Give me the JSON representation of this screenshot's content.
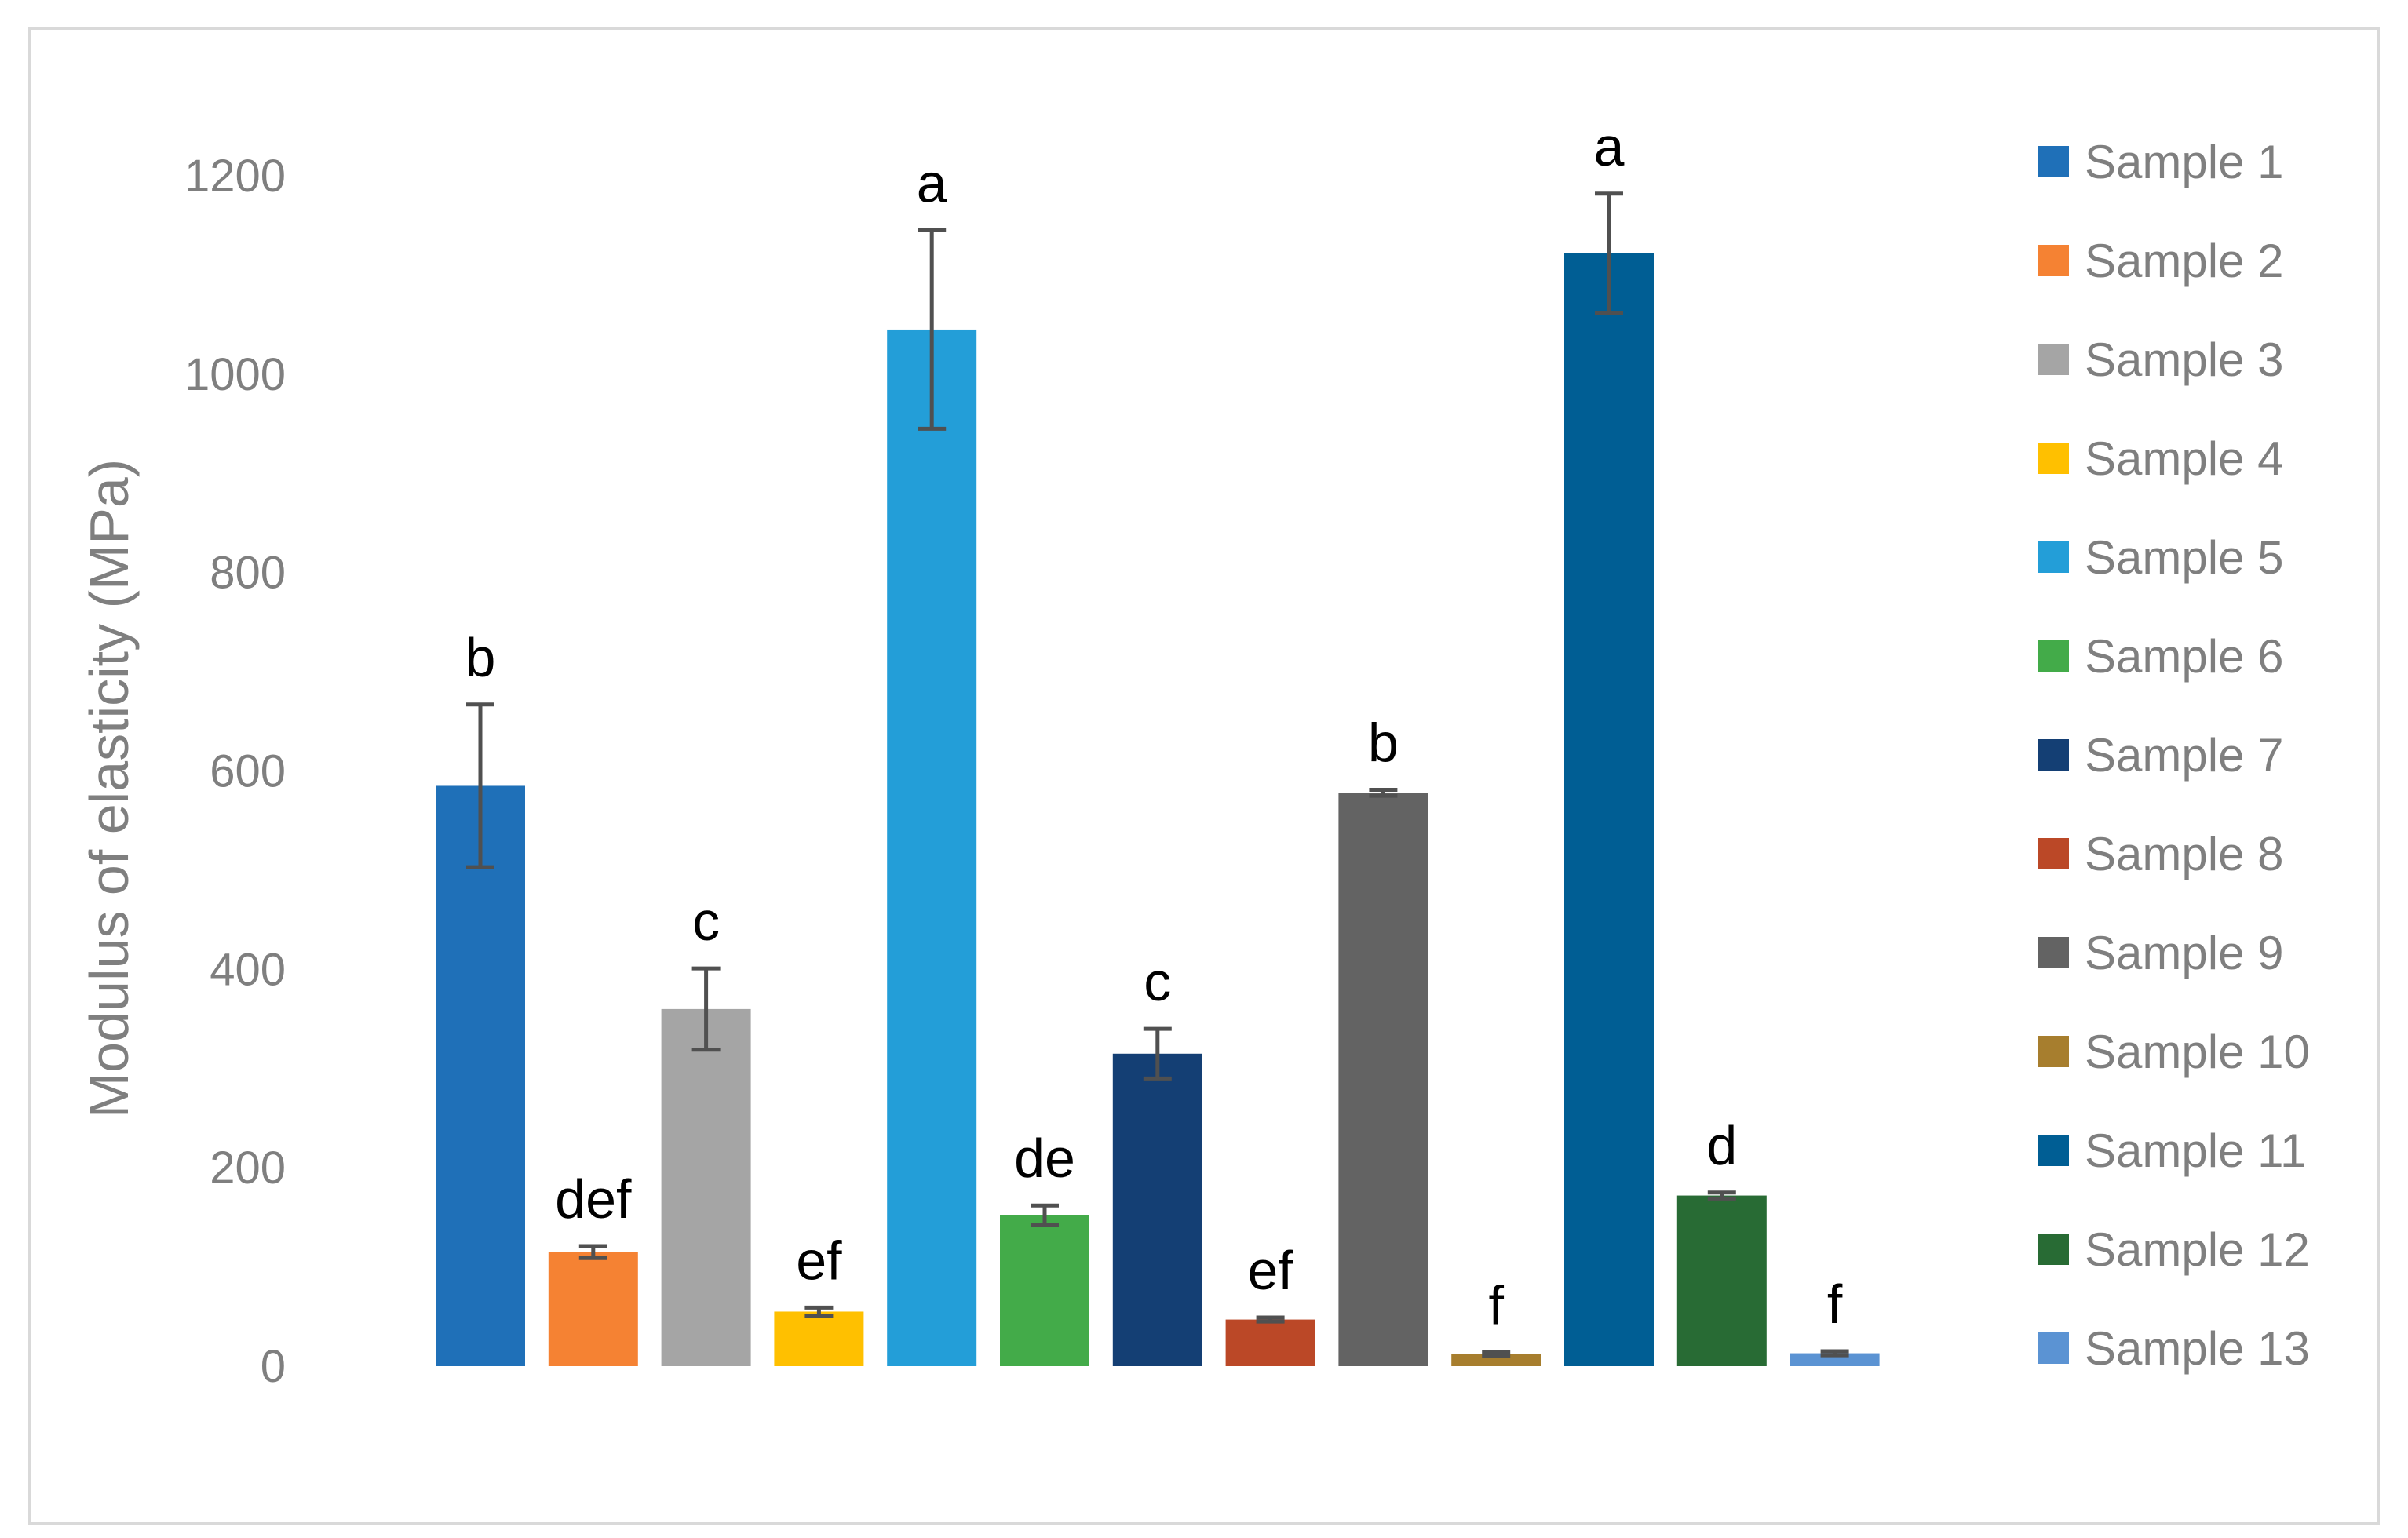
{
  "chart_data": {
    "type": "bar",
    "title": "",
    "xlabel": "",
    "ylabel": "Modulus of elasticity (MPa)",
    "ylim": [
      0,
      1200
    ],
    "yticks": [
      0,
      200,
      400,
      600,
      800,
      1000,
      1200
    ],
    "grid": false,
    "legend": "right",
    "categories": [
      "Sample 1",
      "Sample 2",
      "Sample 3",
      "Sample 4",
      "Sample 5",
      "Sample 6",
      "Sample 7",
      "Sample 8",
      "Sample 9",
      "Sample 10",
      "Sample 11",
      "Sample 12",
      "Sample 13"
    ],
    "values": [
      585,
      115,
      360,
      55,
      1045,
      152,
      315,
      47,
      578,
      12,
      1122,
      172,
      13
    ],
    "errors": [
      82,
      6,
      41,
      4,
      100,
      10,
      25,
      2,
      3,
      2,
      60,
      3,
      2
    ],
    "significance_letters": [
      "b",
      "def",
      "c",
      "ef",
      "a",
      "de",
      "c",
      "ef",
      "b",
      "f",
      "a",
      "d",
      "f"
    ],
    "colors": [
      "#1f70b8",
      "#f58233",
      "#a5a5a5",
      "#ffc000",
      "#239ed8",
      "#43ab49",
      "#143f74",
      "#bb4827",
      "#636363",
      "#a77e2e",
      "#005e94",
      "#286b34",
      "#5b93d3"
    ]
  }
}
